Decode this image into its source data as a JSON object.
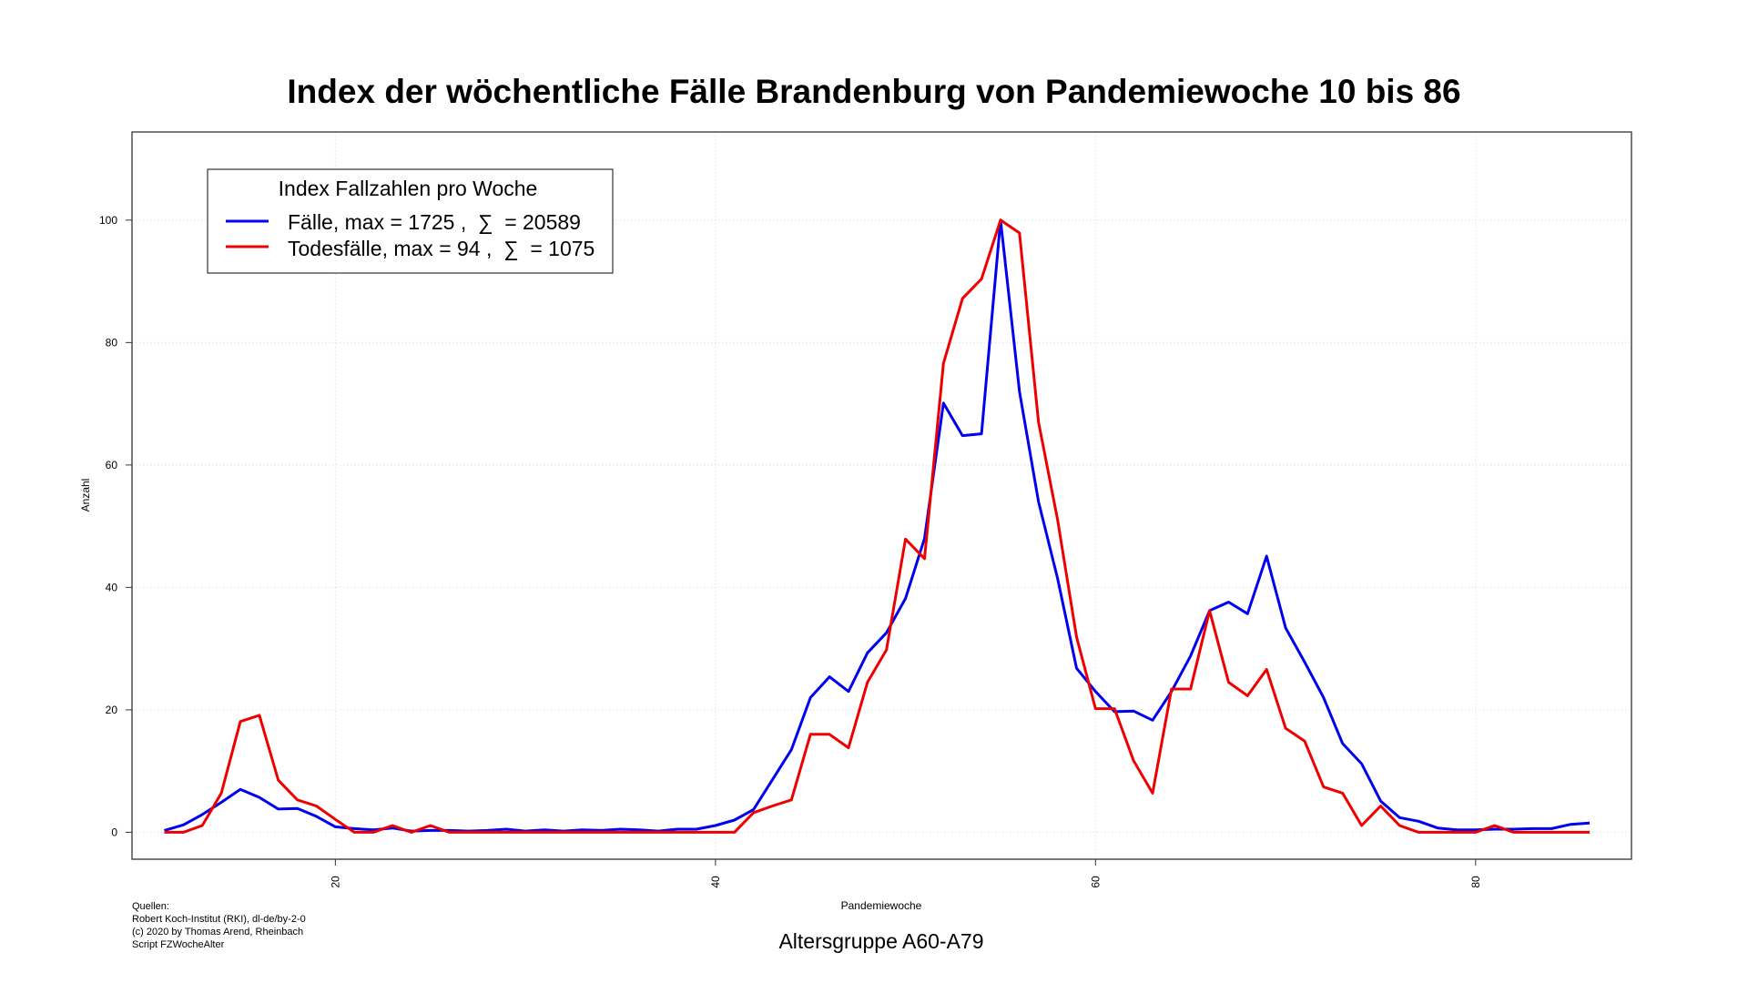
{
  "chart_data": {
    "type": "line",
    "title": "Index der wöchentliche Fälle Brandenburg von Pandemiewoche 10 bis 86",
    "xlabel": "Pandemiewoche",
    "ylabel": "Anzahl",
    "subtitle": "Altersgruppe A60-A79",
    "xlim": [
      9.3,
      88.2
    ],
    "ylim": [
      -4.4,
      114.4
    ],
    "x_ticks": [
      20,
      40,
      60,
      80
    ],
    "y_ticks": [
      0,
      20,
      40,
      60,
      80,
      100
    ],
    "x_tick_labels": [
      "20",
      "40",
      "60",
      "80"
    ],
    "y_tick_labels": [
      "0",
      "20",
      "40",
      "60",
      "80",
      "100"
    ],
    "grid": true,
    "legend": {
      "title": "Index Fallzahlen pro Woche",
      "placement": "top-left",
      "entries": [
        {
          "label": "Fälle, max = 1725 ,  ∑  = 20589",
          "color": "#0000ee"
        },
        {
          "label": "Todesfälle, max = 94 ,  ∑  = 1075",
          "color": "#ee0000"
        }
      ]
    },
    "x": [
      11,
      12,
      13,
      14,
      15,
      16,
      17,
      18,
      19,
      20,
      21,
      22,
      23,
      24,
      25,
      26,
      27,
      28,
      29,
      30,
      31,
      32,
      33,
      34,
      35,
      36,
      37,
      38,
      39,
      40,
      41,
      42,
      43,
      44,
      45,
      46,
      47,
      48,
      49,
      50,
      51,
      52,
      53,
      54,
      55,
      56,
      57,
      58,
      59,
      60,
      61,
      62,
      63,
      64,
      65,
      66,
      67,
      68,
      69,
      70,
      71,
      72,
      73,
      74,
      75,
      76,
      77,
      78,
      79,
      80,
      81,
      82,
      83,
      84,
      85,
      86
    ],
    "series": [
      {
        "name": "Fälle, max = 1725 ,  ∑  = 20589",
        "color": "#0000ee",
        "values": [
          0.3,
          1.2,
          2.9,
          4.9,
          7.0,
          5.7,
          3.8,
          3.9,
          2.6,
          0.9,
          0.6,
          0.4,
          0.7,
          0.2,
          0.3,
          0.3,
          0.2,
          0.3,
          0.5,
          0.2,
          0.4,
          0.2,
          0.4,
          0.3,
          0.5,
          0.4,
          0.2,
          0.5,
          0.5,
          1.1,
          2.0,
          3.7,
          8.6,
          13.5,
          22.0,
          25.4,
          23.0,
          29.3,
          32.6,
          38.2,
          48.0,
          70.1,
          64.8,
          65.1,
          100.0,
          72.0,
          54.0,
          41.5,
          26.8,
          23.0,
          19.7,
          19.8,
          18.3,
          23.0,
          28.8,
          36.2,
          37.6,
          35.7,
          45.1,
          33.4,
          27.8,
          22.0,
          14.5,
          11.2,
          5.1,
          2.4,
          1.8,
          0.7,
          0.4,
          0.4,
          0.5,
          0.5,
          0.6,
          0.6,
          1.3,
          1.5
        ]
      },
      {
        "name": "Todesfälle, max = 94 ,  ∑  = 1075",
        "color": "#ee0000",
        "values": [
          0.0,
          0.0,
          1.1,
          6.4,
          18.1,
          19.1,
          8.5,
          5.3,
          4.3,
          2.1,
          0.0,
          0.0,
          1.1,
          0.0,
          1.1,
          0.0,
          0.0,
          0.0,
          0.0,
          0.0,
          0.0,
          0.0,
          0.0,
          0.0,
          0.0,
          0.0,
          0.0,
          0.0,
          0.0,
          0.0,
          0.0,
          3.2,
          4.3,
          5.3,
          16.0,
          16.0,
          13.8,
          24.5,
          29.8,
          47.9,
          44.7,
          76.6,
          87.2,
          90.4,
          100.0,
          97.9,
          67.0,
          51.1,
          31.9,
          20.2,
          20.2,
          11.7,
          6.4,
          23.4,
          23.4,
          36.2,
          24.5,
          22.3,
          26.6,
          17.0,
          14.9,
          7.4,
          6.4,
          1.1,
          4.3,
          1.1,
          0.0,
          0.0,
          0.0,
          0.0,
          1.1,
          0.0,
          0.0,
          0.0,
          0.0,
          0.0
        ]
      }
    ]
  },
  "footer": {
    "sources": [
      "Quellen:",
      "Robert Koch-Institut (RKI), dl-de/by-2-0",
      "(c) 2020 by Thomas Arend, Rheinbach",
      "Script FZWocheAlter"
    ]
  }
}
